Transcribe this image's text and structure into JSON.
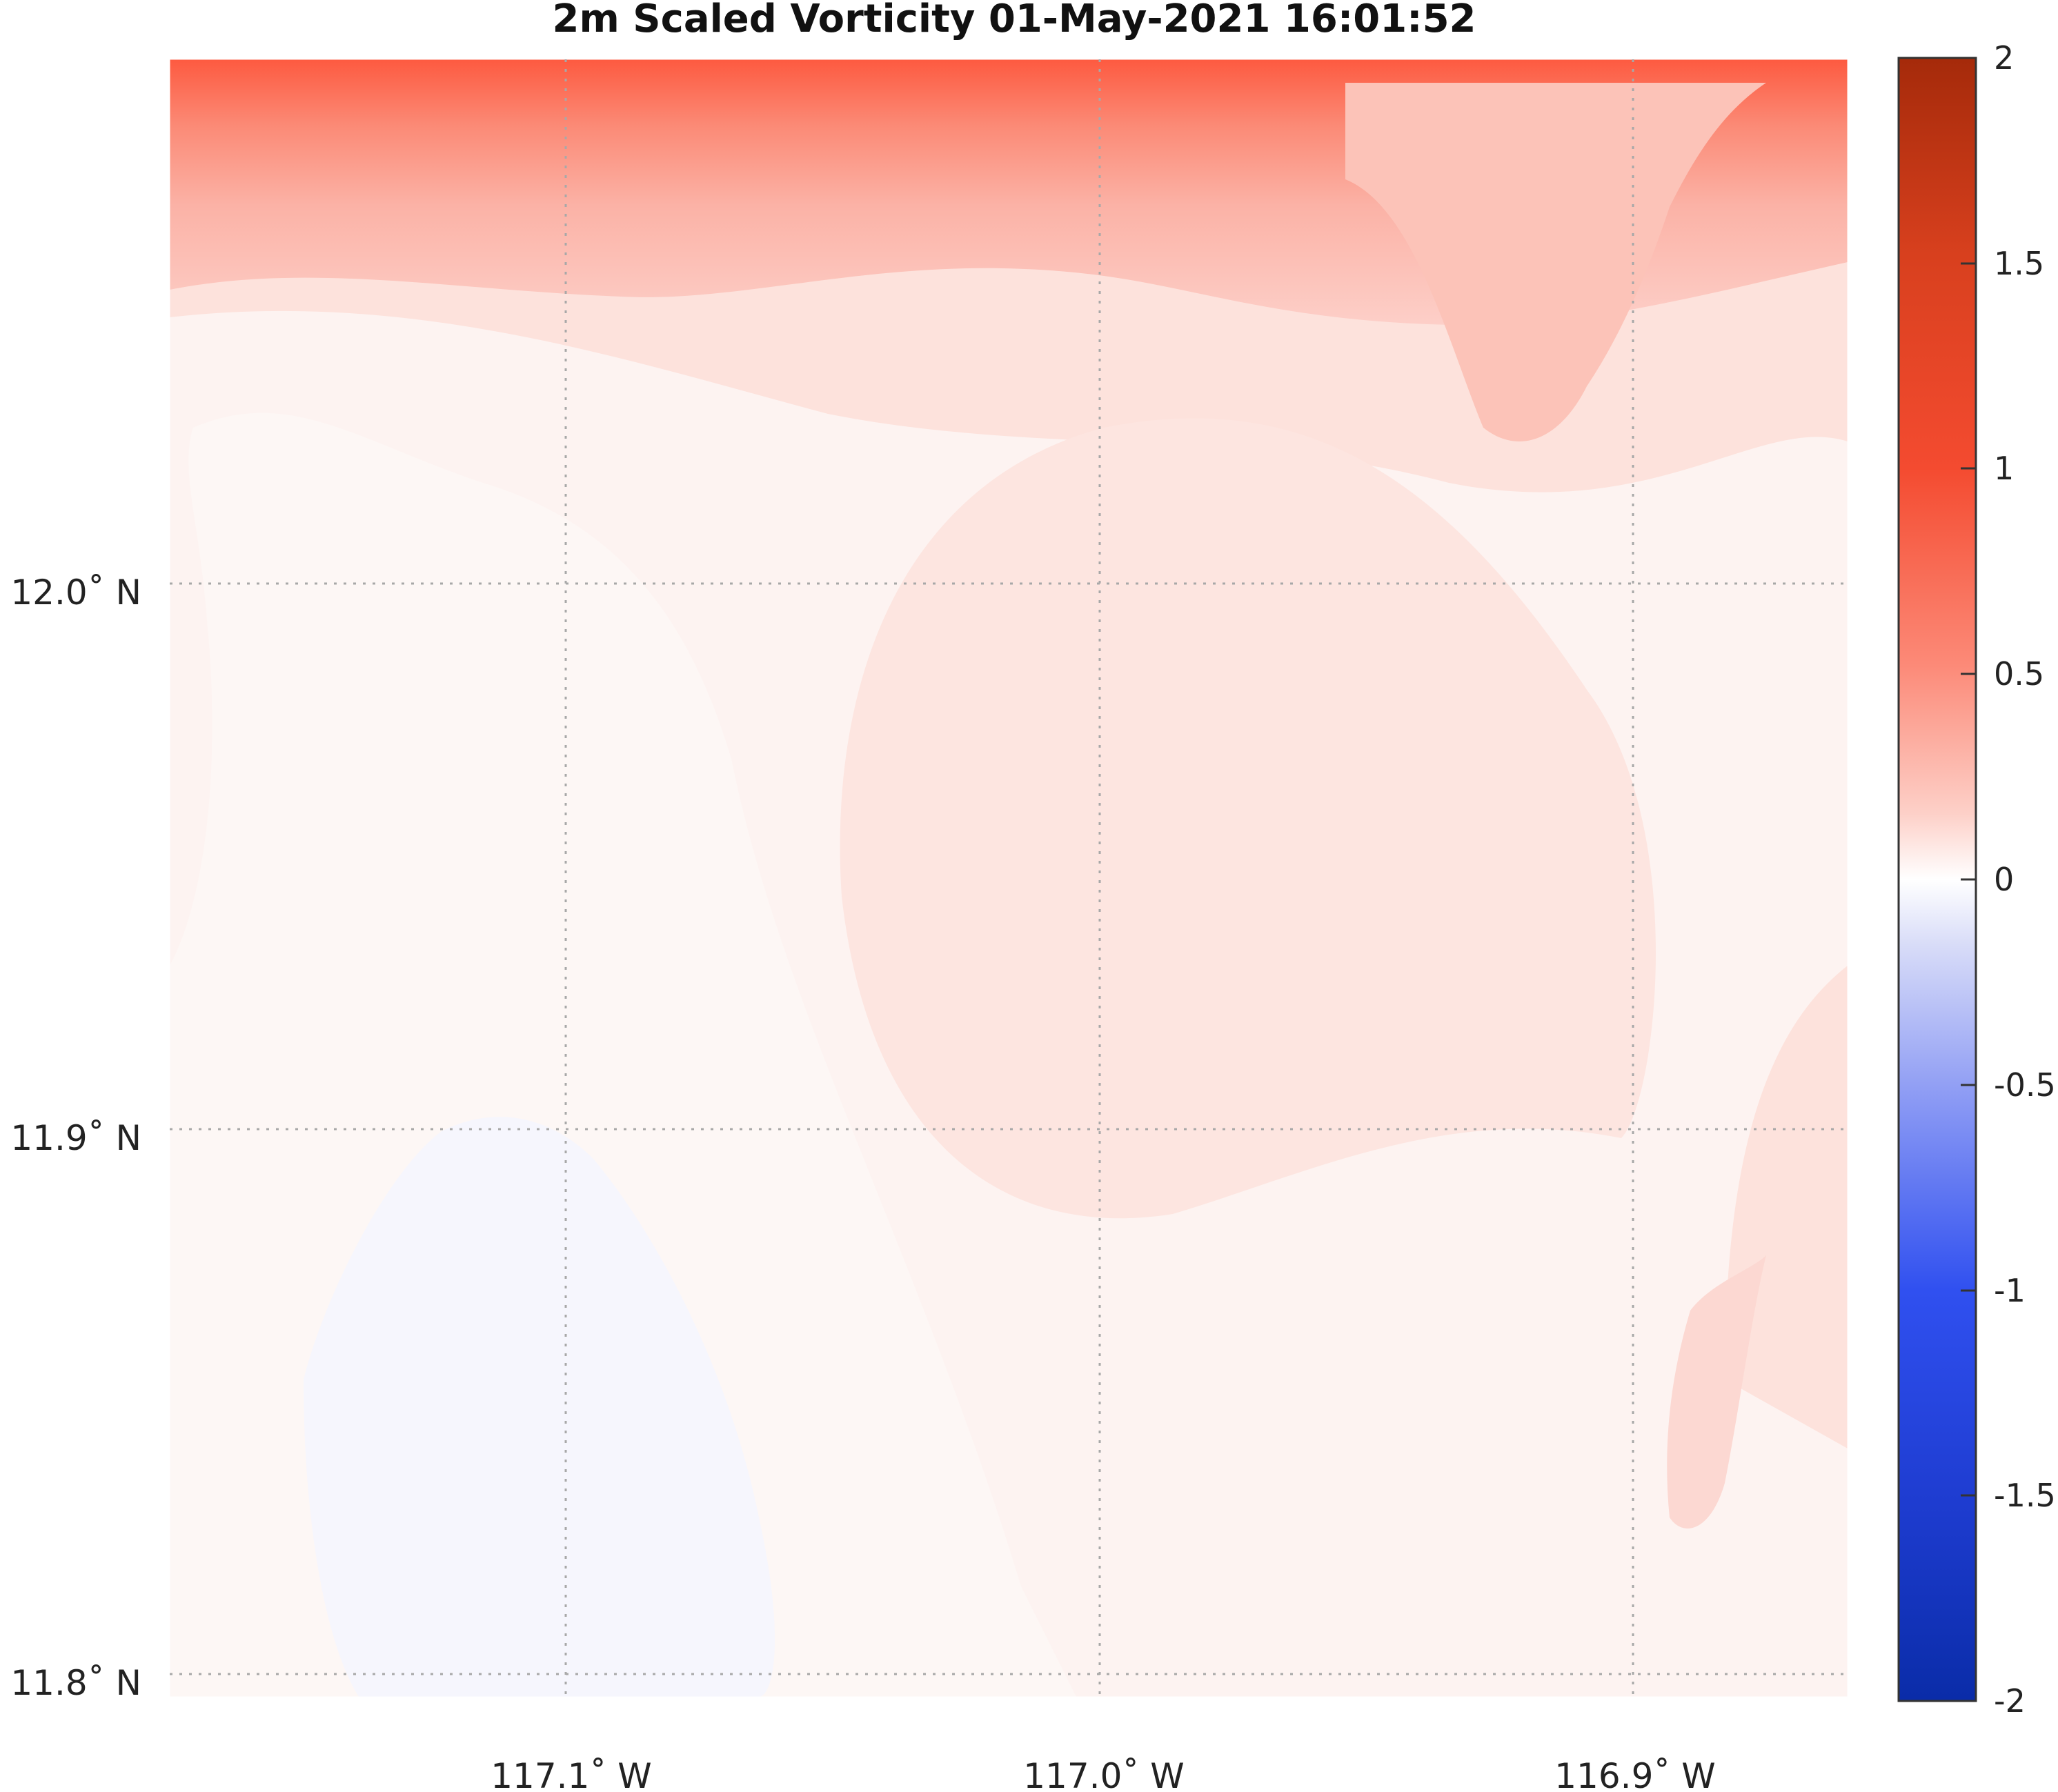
{
  "title": "2m Scaled Vorticity  01-May-2021 16:01:52",
  "map": {
    "lon_ticks": [
      "117.1˚ W",
      "117.0˚ W",
      "116.9˚ W"
    ],
    "lat_ticks": [
      "12.0˚ N",
      "11.9˚ N",
      "11.8˚ N"
    ],
    "grid": true,
    "grid_style": "dotted"
  },
  "colorbar": {
    "range": [
      -2,
      2
    ],
    "tick_labels": [
      "2",
      "1.5",
      "1",
      "0.5",
      "0",
      "-0.5",
      "-1",
      "-1.5",
      "-2"
    ],
    "colormap": "blue-white-red diverging",
    "colors": {
      "max": "#a52a0a",
      "high": "#f44b30",
      "mid": "#ffffff",
      "low": "#3050f0",
      "min": "#0a2ca8"
    }
  },
  "field_description": {
    "dominant_sign": "positive",
    "strongest": "upper-left corner"
  }
}
